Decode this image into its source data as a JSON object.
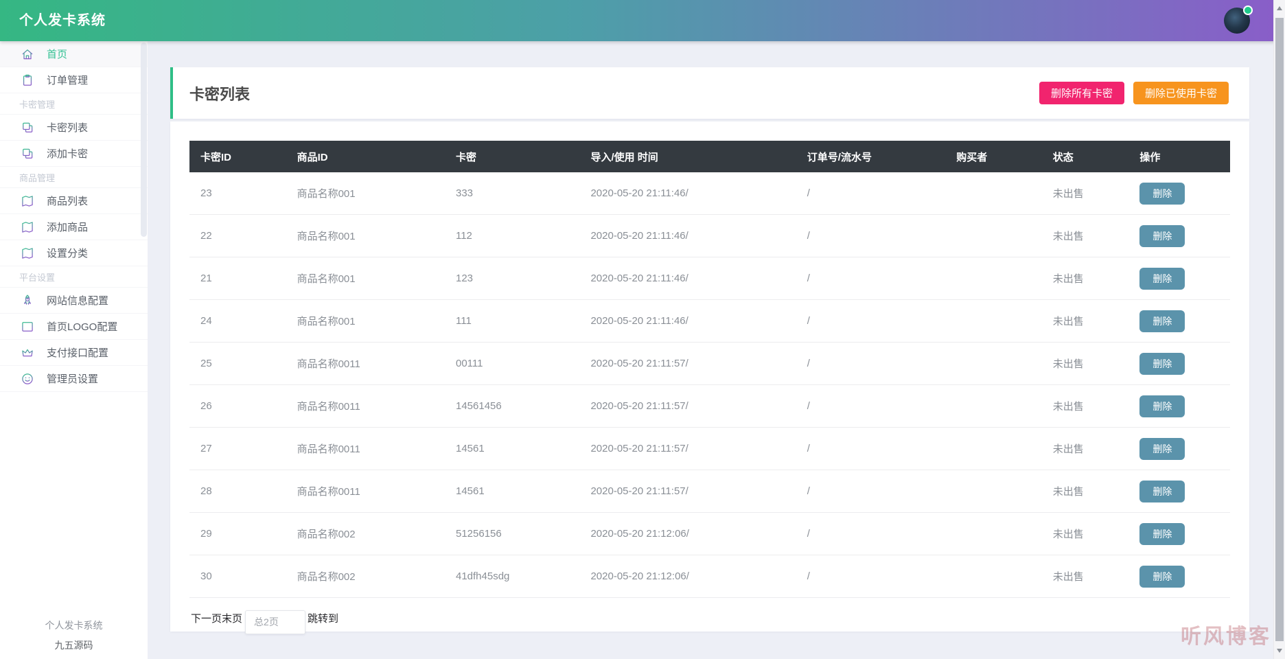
{
  "app": {
    "title": "个人发卡系统"
  },
  "header": {
    "avatar": "user-avatar",
    "status_dot_color": "#1ec98b"
  },
  "sidebar": {
    "items": [
      {
        "label": "首页",
        "icon": "home-icon",
        "active": true
      },
      {
        "label": "订单管理",
        "icon": "clipboard-icon"
      },
      {
        "type": "section",
        "label": "卡密管理"
      },
      {
        "label": "卡密列表",
        "icon": "copy-icon"
      },
      {
        "label": "添加卡密",
        "icon": "copy-icon"
      },
      {
        "type": "section",
        "label": "商品管理"
      },
      {
        "label": "商品列表",
        "icon": "book-icon"
      },
      {
        "label": "添加商品",
        "icon": "book-icon"
      },
      {
        "label": "设置分类",
        "icon": "book-icon"
      },
      {
        "type": "section",
        "label": "平台设置"
      },
      {
        "label": "网站信息配置",
        "icon": "rocket-icon"
      },
      {
        "label": "首页LOGO配置",
        "icon": "layout-icon"
      },
      {
        "label": "支付接口配置",
        "icon": "crown-icon"
      },
      {
        "label": "管理员设置",
        "icon": "smiley-icon"
      }
    ],
    "footer_line1": "个人发卡系统",
    "footer_line2": "九五源码"
  },
  "page": {
    "title": "卡密列表",
    "actions": [
      {
        "label": "删除所有卡密",
        "color": "#f1246e"
      },
      {
        "label": "删除已使用卡密",
        "color": "#f7941e"
      }
    ]
  },
  "table": {
    "columns": [
      "卡密ID",
      "商品ID",
      "卡密",
      "导入/使用 时间",
      "订单号/流水号",
      "购买者",
      "状态",
      "操作"
    ],
    "rows": [
      {
        "id": "23",
        "product": "商品名称001",
        "card": "333",
        "time": "2020-05-20 21:11:46/",
        "order": "/",
        "buyer": "",
        "status": "未出售",
        "action": "删除"
      },
      {
        "id": "22",
        "product": "商品名称001",
        "card": "112",
        "time": "2020-05-20 21:11:46/",
        "order": "/",
        "buyer": "",
        "status": "未出售",
        "action": "删除"
      },
      {
        "id": "21",
        "product": "商品名称001",
        "card": "123",
        "time": "2020-05-20 21:11:46/",
        "order": "/",
        "buyer": "",
        "status": "未出售",
        "action": "删除"
      },
      {
        "id": "24",
        "product": "商品名称001",
        "card": "111",
        "time": "2020-05-20 21:11:46/",
        "order": "/",
        "buyer": "",
        "status": "未出售",
        "action": "删除"
      },
      {
        "id": "25",
        "product": "商品名称0011",
        "card": "00111",
        "time": "2020-05-20 21:11:57/",
        "order": "/",
        "buyer": "",
        "status": "未出售",
        "action": "删除"
      },
      {
        "id": "26",
        "product": "商品名称0011",
        "card": "14561456",
        "time": "2020-05-20 21:11:57/",
        "order": "/",
        "buyer": "",
        "status": "未出售",
        "action": "删除"
      },
      {
        "id": "27",
        "product": "商品名称0011",
        "card": "14561",
        "time": "2020-05-20 21:11:57/",
        "order": "/",
        "buyer": "",
        "status": "未出售",
        "action": "删除"
      },
      {
        "id": "28",
        "product": "商品名称0011",
        "card": "14561",
        "time": "2020-05-20 21:11:57/",
        "order": "/",
        "buyer": "",
        "status": "未出售",
        "action": "删除"
      },
      {
        "id": "29",
        "product": "商品名称002",
        "card": "51256156",
        "time": "2020-05-20 21:12:06/",
        "order": "/",
        "buyer": "",
        "status": "未出售",
        "action": "删除"
      },
      {
        "id": "30",
        "product": "商品名称002",
        "card": "41dfh45sdg",
        "time": "2020-05-20 21:12:06/",
        "order": "/",
        "buyer": "",
        "status": "未出售",
        "action": "删除"
      }
    ]
  },
  "pagination": {
    "next": "下一页",
    "last": "末页",
    "total_placeholder": "总2页",
    "jump": "跳转到"
  },
  "watermark": "听风博客",
  "colors": {
    "accent_green": "#2fbe86",
    "header_gradient_left": "#35b783",
    "header_gradient_right": "#8a5dc9",
    "delete_all_button": "#f1246e",
    "delete_used_button": "#f7941e",
    "table_header_bg": "#343a40",
    "row_delete_button": "#5b93ab",
    "status_dot": "#1ec98b"
  }
}
